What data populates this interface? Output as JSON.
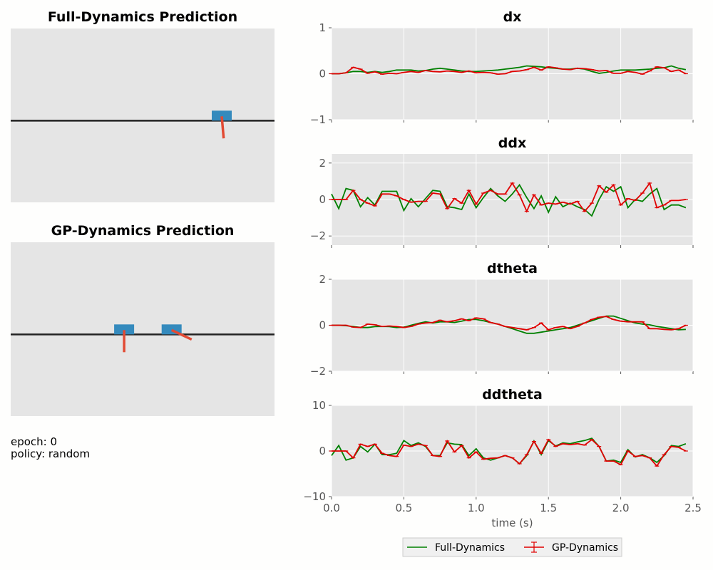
{
  "info": {
    "epoch": "epoch: 0",
    "policy": "policy: random"
  },
  "colors": {
    "panel": "#e5e5e5",
    "cart": "#348abd",
    "pole": "#e24a33",
    "track": "#222222",
    "full": "#008000",
    "gp": "#e00000",
    "grid": "#ffffff"
  },
  "cartpole_panels": [
    {
      "title": "Full-Dynamics Prediction",
      "carts": [
        {
          "x": 0.8,
          "angle_deg": 175
        }
      ]
    },
    {
      "title": "GP-Dynamics Prediction",
      "carts": [
        {
          "x": 0.43,
          "angle_deg": 180
        },
        {
          "x": 0.61,
          "angle_deg": 115
        }
      ]
    }
  ],
  "chart_data": [
    {
      "type": "line",
      "title": "dx",
      "xlim": [
        0,
        2.5
      ],
      "ylim": [
        -1,
        1
      ],
      "yticks": [
        "1",
        "0",
        "−1"
      ],
      "ytick_values": [
        1,
        0,
        -1
      ],
      "x": [
        0,
        0.05,
        0.1,
        0.15,
        0.2,
        0.25,
        0.3,
        0.35,
        0.4,
        0.45,
        0.5,
        0.55,
        0.6,
        0.65,
        0.7,
        0.75,
        0.8,
        0.85,
        0.9,
        0.95,
        1.0,
        1.05,
        1.1,
        1.15,
        1.2,
        1.25,
        1.3,
        1.35,
        1.4,
        1.45,
        1.5,
        1.55,
        1.6,
        1.65,
        1.7,
        1.75,
        1.8,
        1.85,
        1.9,
        1.95,
        2.0,
        2.05,
        2.1,
        2.15,
        2.2,
        2.25,
        2.3,
        2.35,
        2.4,
        2.45
      ],
      "series": [
        {
          "name": "Full-Dynamics",
          "values": [
            0,
            0,
            0.02,
            0.05,
            0.05,
            0.03,
            0.05,
            0.03,
            0.05,
            0.08,
            0.08,
            0.08,
            0.06,
            0.07,
            0.1,
            0.12,
            0.1,
            0.08,
            0.06,
            0.05,
            0.05,
            0.06,
            0.07,
            0.08,
            0.1,
            0.12,
            0.14,
            0.17,
            0.16,
            0.15,
            0.13,
            0.12,
            0.1,
            0.1,
            0.12,
            0.1,
            0.05,
            0.01,
            0.03,
            0.06,
            0.08,
            0.08,
            0.08,
            0.09,
            0.1,
            0.12,
            0.13,
            0.17,
            0.12,
            0.09
          ]
        },
        {
          "name": "GP-Dynamics",
          "values": [
            0,
            0,
            0.02,
            0.14,
            0.1,
            0.01,
            0.04,
            -0.01,
            0.01,
            0,
            0.03,
            0.05,
            0.03,
            0.07,
            0.05,
            0.04,
            0.06,
            0.05,
            0.03,
            0.06,
            0.02,
            0.03,
            0.02,
            -0.01,
            0,
            0.05,
            0.06,
            0.09,
            0.14,
            0.08,
            0.15,
            0.13,
            0.1,
            0.09,
            0.12,
            0.11,
            0.09,
            0.06,
            0.07,
            0.01,
            0.01,
            0.05,
            0.03,
            -0.01,
            0.06,
            0.15,
            0.13,
            0.05,
            0.08,
            0
          ]
        }
      ]
    },
    {
      "type": "line",
      "title": "ddx",
      "xlim": [
        0,
        2.5
      ],
      "ylim": [
        -2.5,
        2.5
      ],
      "yticks": [
        "2",
        "0",
        "−2"
      ],
      "ytick_values": [
        2,
        0,
        -2
      ],
      "x": [
        0,
        0.05,
        0.1,
        0.15,
        0.2,
        0.25,
        0.3,
        0.35,
        0.4,
        0.45,
        0.5,
        0.55,
        0.6,
        0.65,
        0.7,
        0.75,
        0.8,
        0.85,
        0.9,
        0.95,
        1.0,
        1.05,
        1.1,
        1.15,
        1.2,
        1.25,
        1.3,
        1.35,
        1.4,
        1.45,
        1.5,
        1.55,
        1.6,
        1.65,
        1.7,
        1.75,
        1.8,
        1.85,
        1.9,
        1.95,
        2.0,
        2.05,
        2.1,
        2.15,
        2.2,
        2.25,
        2.3,
        2.35,
        2.4,
        2.45
      ],
      "series": [
        {
          "name": "Full-Dynamics",
          "values": [
            0.3,
            -0.5,
            0.6,
            0.5,
            -0.4,
            0.1,
            -0.3,
            0.45,
            0.45,
            0.45,
            -0.6,
            0.05,
            -0.4,
            0.05,
            0.5,
            0.45,
            -0.4,
            -0.45,
            -0.55,
            0.3,
            -0.45,
            0.1,
            0.6,
            0.2,
            -0.1,
            0.3,
            0.8,
            0.1,
            -0.5,
            0.2,
            -0.7,
            0.15,
            -0.4,
            -0.2,
            -0.4,
            -0.55,
            -0.9,
            0,
            0.7,
            0.45,
            0.7,
            -0.45,
            0,
            -0.1,
            0.3,
            0.6,
            -0.55,
            -0.3,
            -0.3,
            -0.45
          ]
        },
        {
          "name": "GP-Dynamics",
          "values": [
            0,
            0,
            0,
            0.5,
            0,
            -0.2,
            -0.35,
            0.3,
            0.3,
            0.2,
            0,
            -0.15,
            -0.1,
            -0.1,
            0.35,
            0.3,
            -0.5,
            0.05,
            -0.2,
            0.5,
            -0.25,
            0.35,
            0.5,
            0.3,
            0.3,
            0.9,
            0.25,
            -0.65,
            0.25,
            -0.3,
            -0.2,
            -0.25,
            -0.15,
            -0.25,
            -0.1,
            -0.65,
            -0.2,
            0.75,
            0.4,
            0.8,
            -0.3,
            0.05,
            -0.05,
            0.35,
            0.9,
            -0.45,
            -0.3,
            -0.05,
            -0.05,
            0
          ]
        }
      ]
    },
    {
      "type": "line",
      "title": "dtheta",
      "xlim": [
        0,
        2.5
      ],
      "ylim": [
        -2,
        2
      ],
      "yticks": [
        "2",
        "0",
        "−2"
      ],
      "ytick_values": [
        2,
        0,
        -2
      ],
      "x": [
        0,
        0.05,
        0.1,
        0.15,
        0.2,
        0.25,
        0.3,
        0.35,
        0.4,
        0.45,
        0.5,
        0.55,
        0.6,
        0.65,
        0.7,
        0.75,
        0.8,
        0.85,
        0.9,
        0.95,
        1.0,
        1.05,
        1.1,
        1.15,
        1.2,
        1.25,
        1.3,
        1.35,
        1.4,
        1.45,
        1.5,
        1.55,
        1.6,
        1.65,
        1.7,
        1.75,
        1.8,
        1.85,
        1.9,
        1.95,
        2.0,
        2.05,
        2.1,
        2.15,
        2.2,
        2.25,
        2.3,
        2.35,
        2.4,
        2.45
      ],
      "series": [
        {
          "name": "Full-Dynamics",
          "values": [
            0,
            0,
            -0.02,
            -0.05,
            -0.1,
            -0.1,
            -0.06,
            -0.05,
            -0.06,
            -0.1,
            -0.08,
            0,
            0.08,
            0.15,
            0.1,
            0.15,
            0.15,
            0.12,
            0.18,
            0.25,
            0.25,
            0.2,
            0.12,
            0.05,
            -0.05,
            -0.15,
            -0.25,
            -0.35,
            -0.35,
            -0.3,
            -0.25,
            -0.2,
            -0.15,
            -0.1,
            0,
            0.1,
            0.2,
            0.3,
            0.4,
            0.4,
            0.3,
            0.2,
            0.1,
            0.05,
            0.02,
            -0.05,
            -0.1,
            -0.15,
            -0.2,
            -0.18
          ]
        },
        {
          "name": "GP-Dynamics",
          "values": [
            0,
            0,
            0,
            -0.08,
            -0.1,
            0.05,
            0.02,
            -0.05,
            -0.03,
            -0.05,
            -0.1,
            -0.05,
            0.05,
            0.1,
            0.12,
            0.22,
            0.15,
            0.2,
            0.28,
            0.2,
            0.32,
            0.28,
            0.12,
            0.05,
            -0.05,
            -0.1,
            -0.15,
            -0.2,
            -0.1,
            0.1,
            -0.2,
            -0.1,
            -0.05,
            -0.15,
            -0.05,
            0.1,
            0.25,
            0.35,
            0.38,
            0.25,
            0.18,
            0.15,
            0.15,
            0.15,
            -0.15,
            -0.15,
            -0.18,
            -0.2,
            -0.15,
            0
          ]
        }
      ]
    },
    {
      "type": "line",
      "title": "ddtheta",
      "xlim": [
        0,
        2.5
      ],
      "ylim": [
        -10,
        10
      ],
      "yticks": [
        "10",
        "0",
        "−10"
      ],
      "ytick_values": [
        10,
        0,
        -10
      ],
      "xlabel": "time (s)",
      "xticks": [
        "0.0",
        "0.5",
        "1.0",
        "1.5",
        "2.0",
        "2.5"
      ],
      "xtick_values": [
        0,
        0.5,
        1.0,
        1.5,
        2.0,
        2.5
      ],
      "x": [
        0,
        0.05,
        0.1,
        0.15,
        0.2,
        0.25,
        0.3,
        0.35,
        0.4,
        0.45,
        0.5,
        0.55,
        0.6,
        0.65,
        0.7,
        0.75,
        0.8,
        0.85,
        0.9,
        0.95,
        1.0,
        1.05,
        1.1,
        1.15,
        1.2,
        1.25,
        1.3,
        1.35,
        1.4,
        1.45,
        1.5,
        1.55,
        1.6,
        1.65,
        1.7,
        1.75,
        1.8,
        1.85,
        1.9,
        1.95,
        2.0,
        2.05,
        2.1,
        2.15,
        2.2,
        2.25,
        2.3,
        2.35,
        2.4,
        2.45
      ],
      "series": [
        {
          "name": "Full-Dynamics",
          "values": [
            -1,
            1.2,
            -2,
            -1.5,
            1,
            -0.2,
            1.5,
            -0.8,
            -0.8,
            -0.5,
            2.3,
            1.2,
            1.8,
            1,
            -1,
            -1,
            1.8,
            1.5,
            1.4,
            -1,
            0.5,
            -1.5,
            -2,
            -1.5,
            -1,
            -1.5,
            -2.8,
            -1,
            2.2,
            -0.8,
            2.3,
            1.1,
            1.8,
            1.6,
            2,
            2.3,
            2.8,
            1,
            -2.2,
            -2,
            -2.5,
            0.3,
            -1.3,
            -0.8,
            -1.5,
            -2.5,
            -1,
            1.2,
            1,
            1.6
          ]
        },
        {
          "name": "GP-Dynamics",
          "values": [
            0,
            0,
            0,
            -1.5,
            1.5,
            1,
            1.5,
            -0.5,
            -1,
            -1.2,
            1.3,
            1,
            1.5,
            1.2,
            -1,
            -1.2,
            2.2,
            -0.2,
            1.2,
            -1.5,
            -0.2,
            -1.8,
            -1.6,
            -1.5,
            -1,
            -1.5,
            -2.8,
            -0.8,
            2.1,
            -0.5,
            2.5,
            1,
            1.6,
            1.4,
            1.6,
            1.3,
            2.5,
            1,
            -2.2,
            -2.2,
            -3,
            0,
            -1.2,
            -1,
            -1.5,
            -3.3,
            -0.8,
            1,
            0.8,
            0
          ]
        }
      ]
    }
  ],
  "legend": {
    "full": "Full-Dynamics",
    "gp": "GP-Dynamics"
  }
}
